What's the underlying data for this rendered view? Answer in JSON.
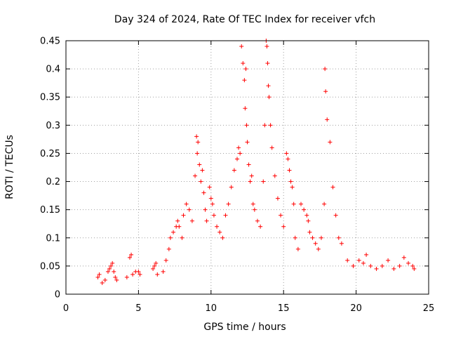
{
  "chart_data": {
    "type": "scatter",
    "title": "Day 324 of 2024, Rate Of TEC Index for receiver vfch",
    "xlabel": "GPS time / hours",
    "ylabel": "ROTI / TECUs",
    "xlim": [
      0,
      25
    ],
    "ylim": [
      0,
      0.45
    ],
    "x_ticks": [
      "0",
      "5",
      "10",
      "15",
      "20",
      "25"
    ],
    "y_ticks": [
      "0",
      "0.05",
      "0.1",
      "0.15",
      "0.2",
      "0.25",
      "0.3",
      "0.35",
      "0.4",
      "0.45"
    ],
    "grid": true,
    "marker": "+",
    "color": "#ff0000",
    "series": [
      {
        "x": [
          2.2,
          2.3,
          2.5,
          2.7,
          2.9,
          3.0,
          3.1,
          3.2,
          3.3,
          3.4,
          3.5,
          4.2,
          4.4,
          4.5,
          4.6,
          4.8,
          5.0,
          5.1,
          6.0,
          6.1,
          6.2,
          6.3,
          6.7,
          6.9,
          7.1,
          7.2,
          7.4,
          7.6,
          7.7,
          7.8,
          8.0,
          8.1,
          8.3,
          8.5,
          8.7,
          8.9,
          9.0,
          9.05,
          9.1,
          9.2,
          9.3,
          9.4,
          9.5,
          9.6,
          9.7,
          9.9,
          10.0,
          10.1,
          10.2,
          10.4,
          10.6,
          10.8,
          11.0,
          11.2,
          11.4,
          11.6,
          11.8,
          11.9,
          12.0,
          12.1,
          12.2,
          12.3,
          12.35,
          12.4,
          12.45,
          12.5,
          12.6,
          12.7,
          12.8,
          12.9,
          13.0,
          13.2,
          13.4,
          13.6,
          13.7,
          13.8,
          13.85,
          13.9,
          13.95,
          14.0,
          14.1,
          14.2,
          14.4,
          14.6,
          14.8,
          15.0,
          15.2,
          15.3,
          15.4,
          15.5,
          15.6,
          15.7,
          15.8,
          16.0,
          16.2,
          16.4,
          16.6,
          16.7,
          16.8,
          17.0,
          17.2,
          17.4,
          17.6,
          17.8,
          17.85,
          17.9,
          18.0,
          18.2,
          18.4,
          18.6,
          18.8,
          19.0,
          19.4,
          19.8,
          20.2,
          20.5,
          20.7,
          21.0,
          21.4,
          21.8,
          22.2,
          22.6,
          23.0,
          23.3,
          23.6,
          23.9,
          24.0
        ],
        "y": [
          0.03,
          0.035,
          0.02,
          0.025,
          0.04,
          0.045,
          0.05,
          0.055,
          0.04,
          0.03,
          0.025,
          0.03,
          0.065,
          0.07,
          0.035,
          0.04,
          0.04,
          0.035,
          0.045,
          0.05,
          0.055,
          0.035,
          0.04,
          0.06,
          0.08,
          0.1,
          0.11,
          0.12,
          0.13,
          0.12,
          0.1,
          0.14,
          0.16,
          0.15,
          0.13,
          0.21,
          0.28,
          0.25,
          0.27,
          0.23,
          0.2,
          0.22,
          0.18,
          0.15,
          0.13,
          0.19,
          0.17,
          0.16,
          0.14,
          0.12,
          0.11,
          0.1,
          0.14,
          0.16,
          0.19,
          0.22,
          0.24,
          0.26,
          0.25,
          0.44,
          0.41,
          0.38,
          0.33,
          0.4,
          0.3,
          0.27,
          0.23,
          0.2,
          0.21,
          0.16,
          0.15,
          0.13,
          0.12,
          0.2,
          0.3,
          0.45,
          0.44,
          0.41,
          0.37,
          0.35,
          0.3,
          0.26,
          0.21,
          0.17,
          0.14,
          0.12,
          0.25,
          0.24,
          0.22,
          0.2,
          0.19,
          0.16,
          0.1,
          0.08,
          0.16,
          0.15,
          0.14,
          0.13,
          0.11,
          0.1,
          0.09,
          0.08,
          0.1,
          0.16,
          0.4,
          0.36,
          0.31,
          0.27,
          0.19,
          0.14,
          0.1,
          0.09,
          0.06,
          0.05,
          0.06,
          0.055,
          0.07,
          0.05,
          0.045,
          0.05,
          0.06,
          0.045,
          0.05,
          0.065,
          0.055,
          0.05,
          0.045
        ]
      }
    ]
  }
}
